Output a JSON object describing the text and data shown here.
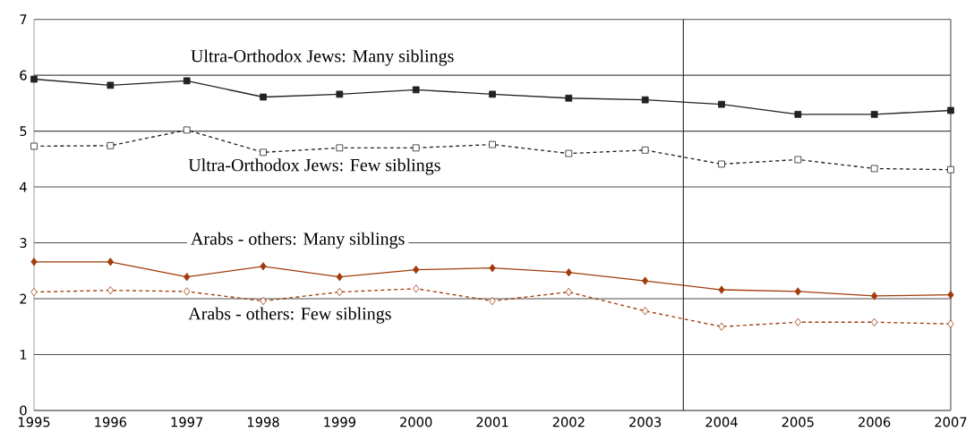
{
  "chart_data": {
    "type": "line",
    "x": [
      1995,
      1996,
      1997,
      1998,
      1999,
      2000,
      2001,
      2002,
      2003,
      2004,
      2005,
      2006,
      2007
    ],
    "series": [
      {
        "name": "Ultra-Orthodox Jews: Many siblings",
        "color": "#222222",
        "marker": "square",
        "line_style": "solid",
        "values": [
          5.93,
          5.82,
          5.9,
          5.61,
          5.66,
          5.74,
          5.66,
          5.59,
          5.56,
          5.48,
          5.3,
          5.3,
          5.37
        ]
      },
      {
        "name": "Ultra-Orthodox Jews: Few siblings",
        "color": "#222222",
        "marker": "square",
        "line_style": "dashed",
        "values": [
          4.73,
          4.74,
          5.02,
          4.62,
          4.7,
          4.7,
          4.76,
          4.6,
          4.66,
          4.41,
          4.49,
          4.33,
          4.31
        ]
      },
      {
        "name": "Arabs - others: Many siblings",
        "color": "#a03c0c",
        "marker": "diamond",
        "line_style": "solid",
        "values": [
          2.66,
          2.66,
          2.39,
          2.58,
          2.39,
          2.52,
          2.55,
          2.47,
          2.32,
          2.16,
          2.13,
          2.05,
          2.07
        ]
      },
      {
        "name": "Arabs - others: Few siblings",
        "color": "#a03c0c",
        "marker": "diamond",
        "line_style": "dashed",
        "values": [
          2.12,
          2.15,
          2.13,
          1.96,
          2.12,
          2.18,
          1.96,
          2.12,
          1.78,
          1.5,
          1.58,
          1.58,
          1.55
        ]
      }
    ],
    "xlim": [
      1995,
      2007
    ],
    "xticks": [
      1995,
      1996,
      1997,
      1998,
      1999,
      2000,
      2001,
      2002,
      2003,
      2004,
      2005,
      2006,
      2007
    ],
    "ylim": [
      0,
      7
    ],
    "yticks": [
      0,
      1,
      2,
      3,
      4,
      5,
      6,
      7
    ],
    "ref_lines": [
      {
        "axis": "x",
        "value": 2003.5,
        "color": "#333333"
      }
    ],
    "grid": "y",
    "legend": false
  }
}
